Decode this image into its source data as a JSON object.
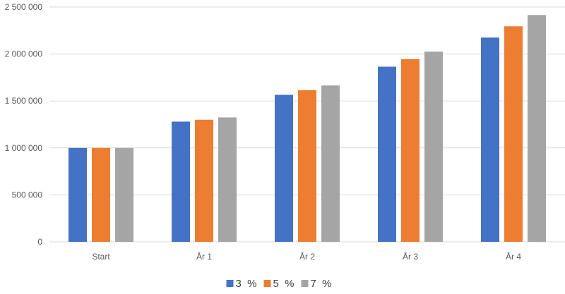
{
  "chart_data": {
    "type": "bar",
    "title": "",
    "xlabel": "",
    "ylabel": "",
    "categories": [
      "Start",
      "År 1",
      "År 2",
      "År 3",
      "År 4"
    ],
    "series": [
      {
        "name": "3  %",
        "color": "#4472C4",
        "values": [
          1000000,
          1280000,
          1565000,
          1865000,
          2175000
        ]
      },
      {
        "name": "5  %",
        "color": "#ED7D31",
        "values": [
          1000000,
          1300000,
          1615000,
          1945000,
          2295000
        ]
      },
      {
        "name": "7  %",
        "color": "#A5A5A5",
        "values": [
          1000000,
          1325000,
          1665000,
          2025000,
          2415000
        ]
      }
    ],
    "ylim": [
      0,
      2500000
    ],
    "yticks": [
      0,
      500000,
      1000000,
      1500000,
      2000000,
      2500000
    ],
    "ytick_labels": [
      "0",
      "500 000",
      "1 000 000",
      "1 500 000",
      "2 000 000",
      "2 500 000"
    ],
    "grid": true,
    "legend": "bottom"
  }
}
